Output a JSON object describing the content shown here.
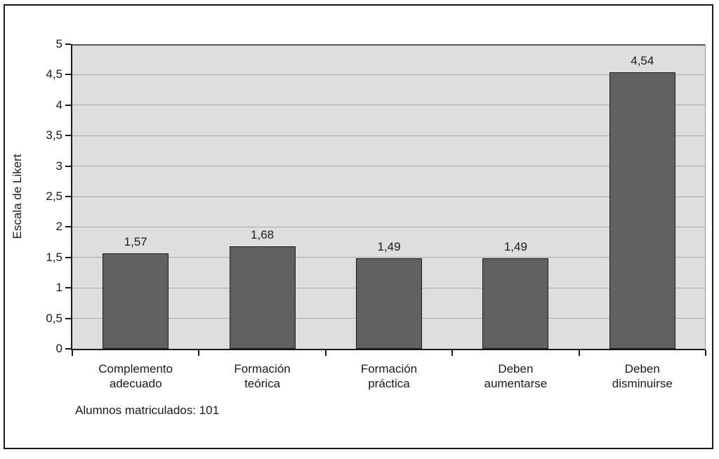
{
  "chart_data": {
    "type": "bar",
    "title": "",
    "ylabel": "Escala de Likert",
    "xlabel": "",
    "categories": [
      "Complemento\nadecuado",
      "Formación\nteórica",
      "Formación\npráctica",
      "Deben\naumentarse",
      "Deben\ndisminuirse"
    ],
    "values": [
      1.57,
      1.68,
      1.49,
      1.49,
      4.54
    ],
    "value_labels": [
      "1,57",
      "1,68",
      "1,49",
      "1,49",
      "4,54"
    ],
    "ylim": [
      0,
      5
    ],
    "ytick_step": 0.5,
    "ytick_labels": [
      "0",
      "0,5",
      "1",
      "1,5",
      "2",
      "2,5",
      "3",
      "3,5",
      "4",
      "4,5",
      "5"
    ],
    "grid": true,
    "legend": false,
    "note": "Alumnos matriculados: 101",
    "colors": {
      "bar_fill": "#616161",
      "bar_border": "#1a1a1a",
      "plot_bg": "#dedede",
      "gridline": "#a8a8a8",
      "axis": "#1a1a1a",
      "text": "#1a1a1a",
      "frame_border": "#1a1a1a",
      "background": "#ffffff"
    }
  }
}
